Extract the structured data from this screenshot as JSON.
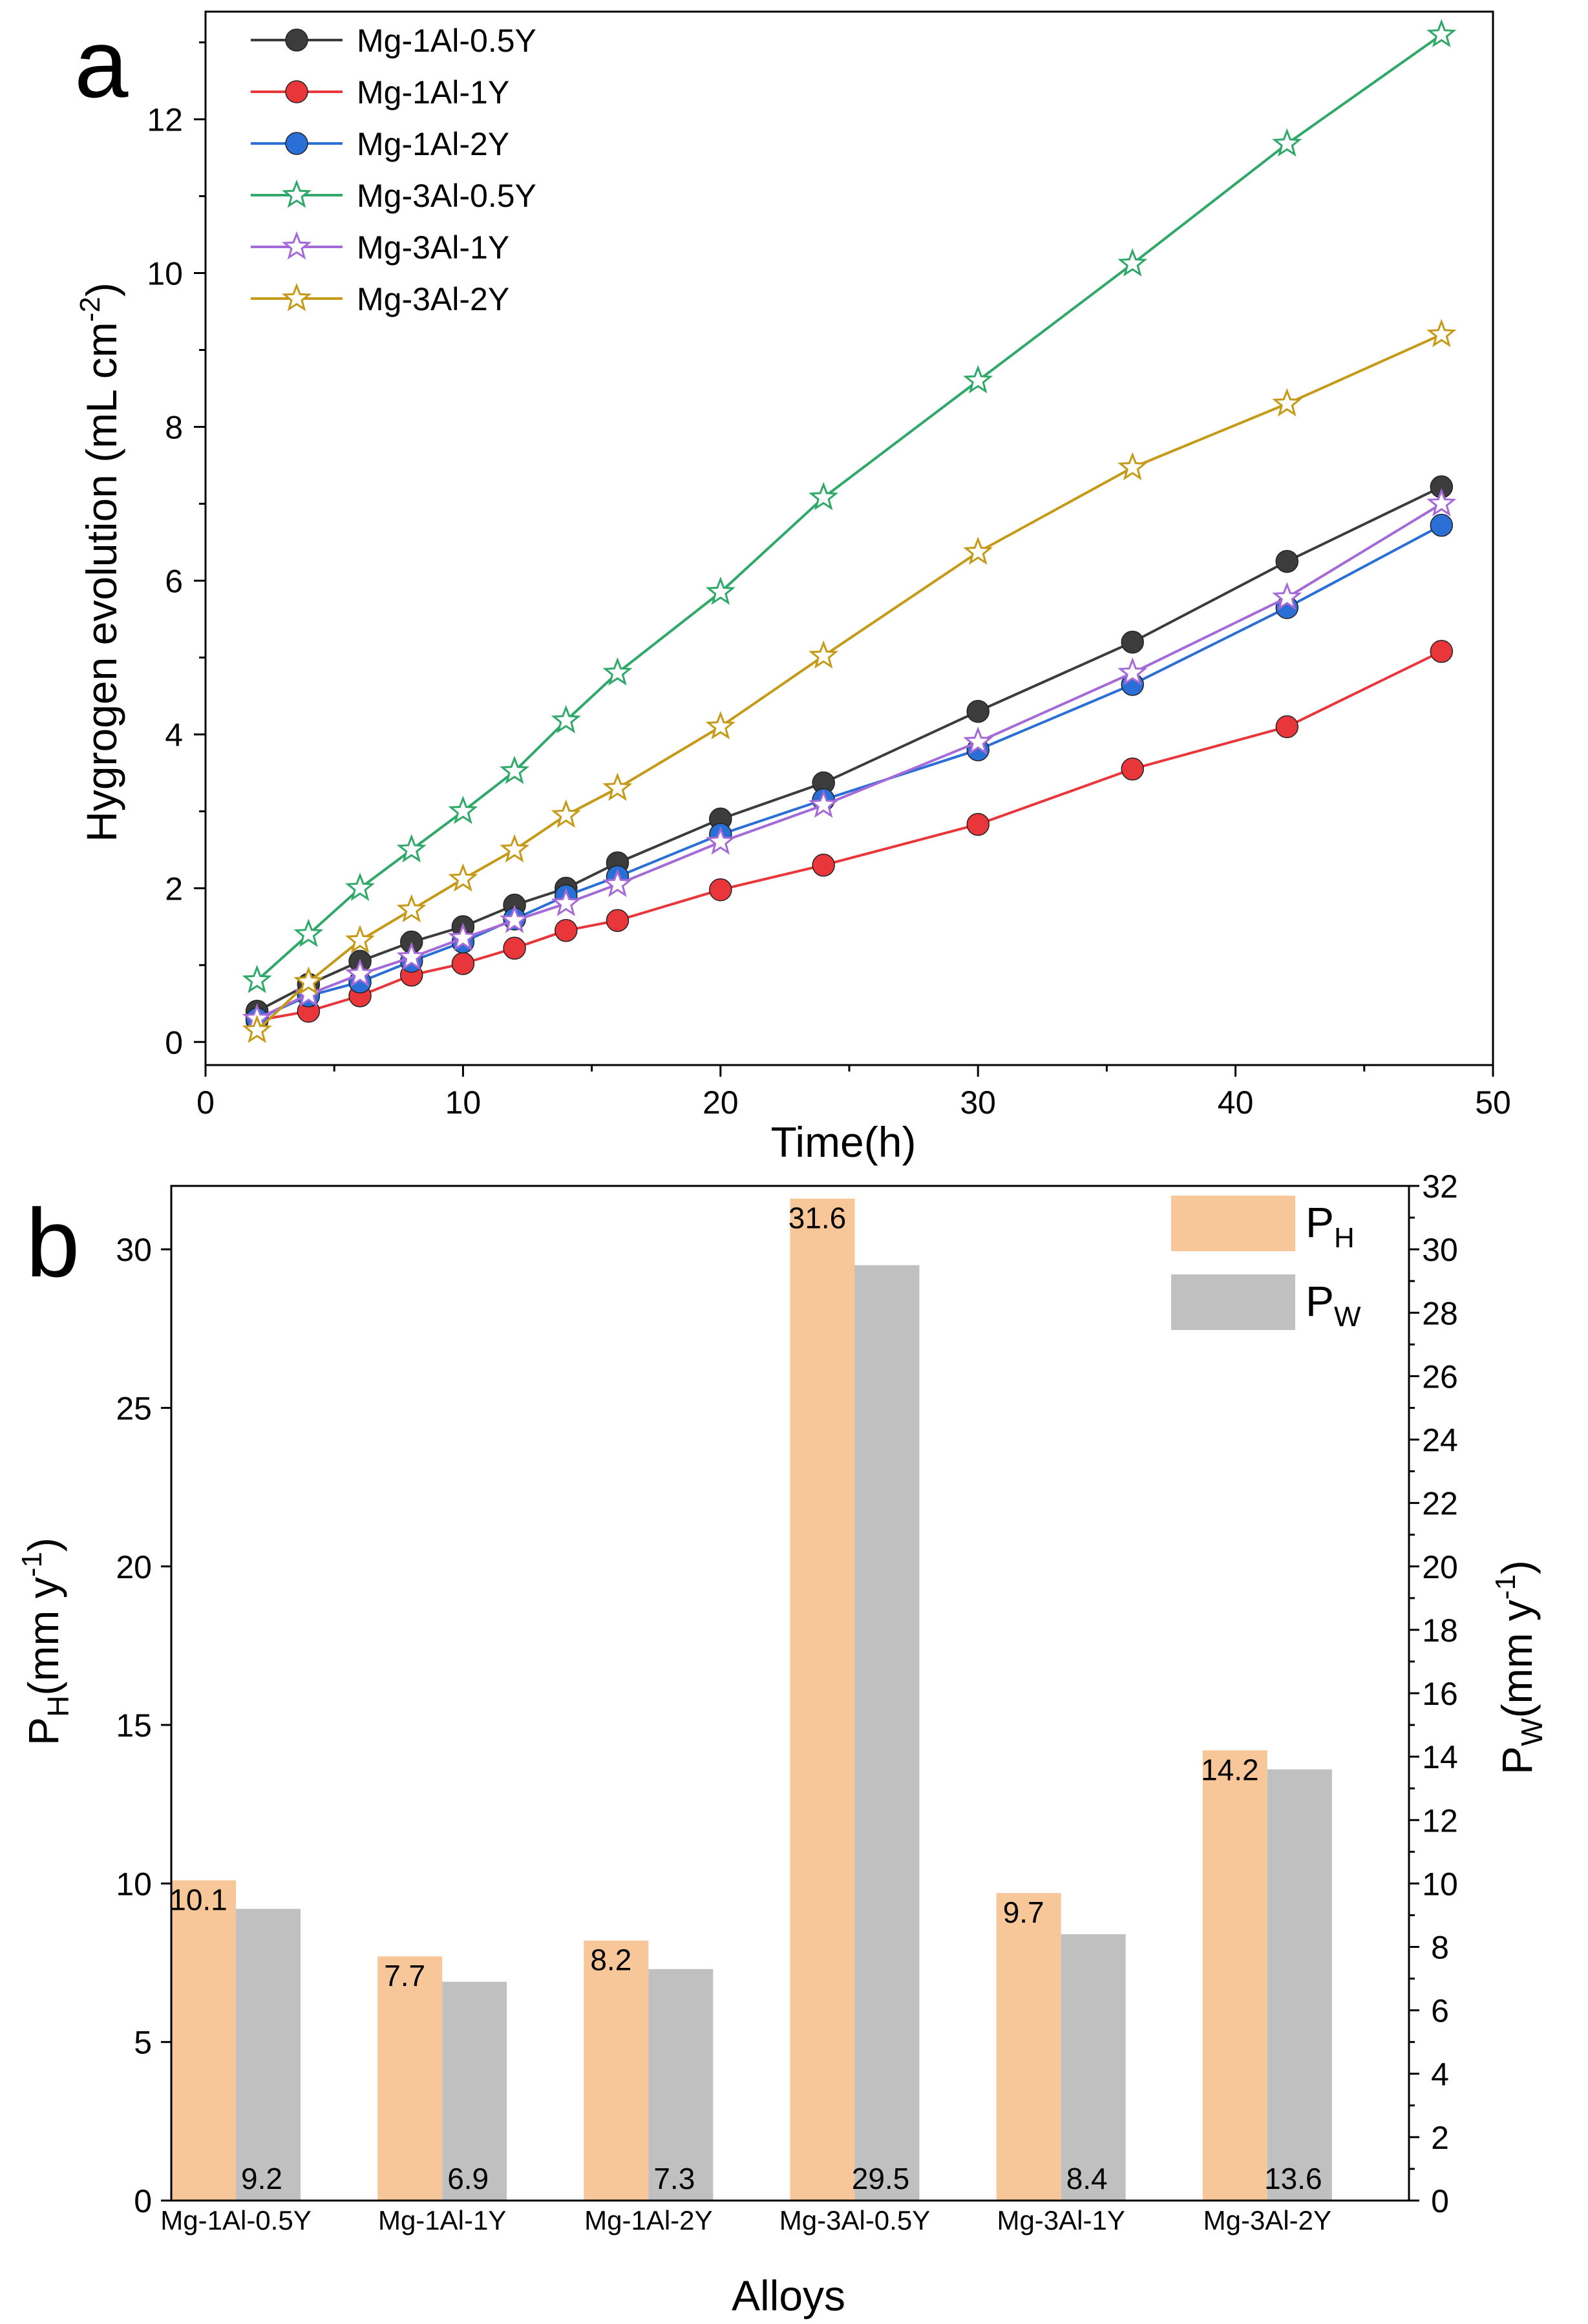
{
  "figure": {
    "panels": [
      "a",
      "b"
    ]
  },
  "chart_data": [
    {
      "panel": "a",
      "type": "line",
      "title": "",
      "xlabel": "Time(h)",
      "ylabel": "Hygrogen evolution (mL cm",
      "ylabel_sup": "-2",
      "ylabel_close": ")",
      "xlim": [
        0,
        50
      ],
      "ylim": [
        -0.3,
        13.4
      ],
      "xticks": [
        0,
        10,
        20,
        30,
        40,
        50
      ],
      "yticks": [
        0,
        2,
        4,
        6,
        8,
        10,
        12
      ],
      "x": [
        2,
        4,
        6,
        8,
        10,
        12,
        14,
        16,
        20,
        24,
        30,
        36,
        42,
        48
      ],
      "legend_position": "top-left",
      "series": [
        {
          "name": "Mg-1Al-0.5Y",
          "color": "#3c3c3c",
          "marker": "circle",
          "values": [
            0.4,
            0.75,
            1.05,
            1.3,
            1.5,
            1.78,
            2.0,
            2.33,
            2.9,
            3.37,
            4.3,
            5.2,
            6.25,
            7.22
          ]
        },
        {
          "name": "Mg-1Al-1Y",
          "color": "#e8363a",
          "marker": "circle",
          "values": [
            0.28,
            0.4,
            0.6,
            0.87,
            1.02,
            1.22,
            1.45,
            1.58,
            1.98,
            2.3,
            2.83,
            3.55,
            4.1,
            5.08
          ]
        },
        {
          "name": "Mg-1Al-2Y",
          "color": "#2a6fd6",
          "marker": "circle",
          "values": [
            0.3,
            0.6,
            0.78,
            1.05,
            1.3,
            1.6,
            1.9,
            2.15,
            2.7,
            3.15,
            3.8,
            4.65,
            5.65,
            6.72
          ]
        },
        {
          "name": "Mg-3Al-0.5Y",
          "color": "#2fa86a",
          "marker": "star",
          "values": [
            0.8,
            1.4,
            2.0,
            2.5,
            3.0,
            3.52,
            4.18,
            4.8,
            5.85,
            7.08,
            8.6,
            10.12,
            11.68,
            13.1
          ]
        },
        {
          "name": "Mg-3Al-1Y",
          "color": "#a46ad8",
          "marker": "star",
          "values": [
            0.3,
            0.62,
            0.88,
            1.1,
            1.35,
            1.58,
            1.8,
            2.05,
            2.6,
            3.08,
            3.9,
            4.8,
            5.78,
            7.0
          ]
        },
        {
          "name": "Mg-3Al-2Y",
          "color": "#c49a18",
          "marker": "star",
          "values": [
            0.15,
            0.78,
            1.32,
            1.72,
            2.12,
            2.5,
            2.95,
            3.3,
            4.1,
            5.02,
            6.37,
            7.47,
            8.3,
            9.2
          ]
        }
      ]
    },
    {
      "panel": "b",
      "type": "bar",
      "title": "",
      "xlabel": "Alloys",
      "ylabel_left_base": "P",
      "ylabel_left_sub": "H",
      "ylabel_left_rest": "(mm y",
      "ylabel_left_sup": "-1",
      "ylabel_left_close": ")",
      "ylabel_right_base": "P",
      "ylabel_right_sub": "W",
      "ylabel_right_rest": "(mm y",
      "ylabel_right_sup": "-1",
      "ylabel_right_close": ")",
      "ylim_left": [
        0,
        32
      ],
      "ylim_right": [
        0,
        32
      ],
      "yticks_left": [
        0,
        5,
        10,
        15,
        20,
        25,
        30
      ],
      "yticks_right": [
        0,
        2,
        4,
        6,
        8,
        10,
        12,
        14,
        16,
        18,
        20,
        22,
        24,
        26,
        28,
        30,
        32
      ],
      "categories": [
        "Mg-1Al-0.5Y",
        "Mg-1Al-1Y",
        "Mg-1Al-2Y",
        "Mg-3Al-0.5Y",
        "Mg-3Al-1Y",
        "Mg-3Al-2Y"
      ],
      "legend_position": "top-right",
      "series": [
        {
          "name_base": "P",
          "name_sub": "H",
          "color": "#f8c799",
          "values": [
            10.1,
            7.7,
            8.2,
            31.6,
            9.7,
            14.2
          ],
          "labels": [
            "10.1",
            "7.7",
            "8.2",
            "31.6",
            "9.7",
            "14.2"
          ]
        },
        {
          "name_base": "P",
          "name_sub": "W",
          "color": "#c0c0c0",
          "values": [
            9.2,
            6.9,
            7.3,
            29.5,
            8.4,
            13.6
          ],
          "labels": [
            "9.2",
            "6.9",
            "7.3",
            "29.5",
            "8.4",
            "13.6"
          ]
        }
      ]
    }
  ]
}
